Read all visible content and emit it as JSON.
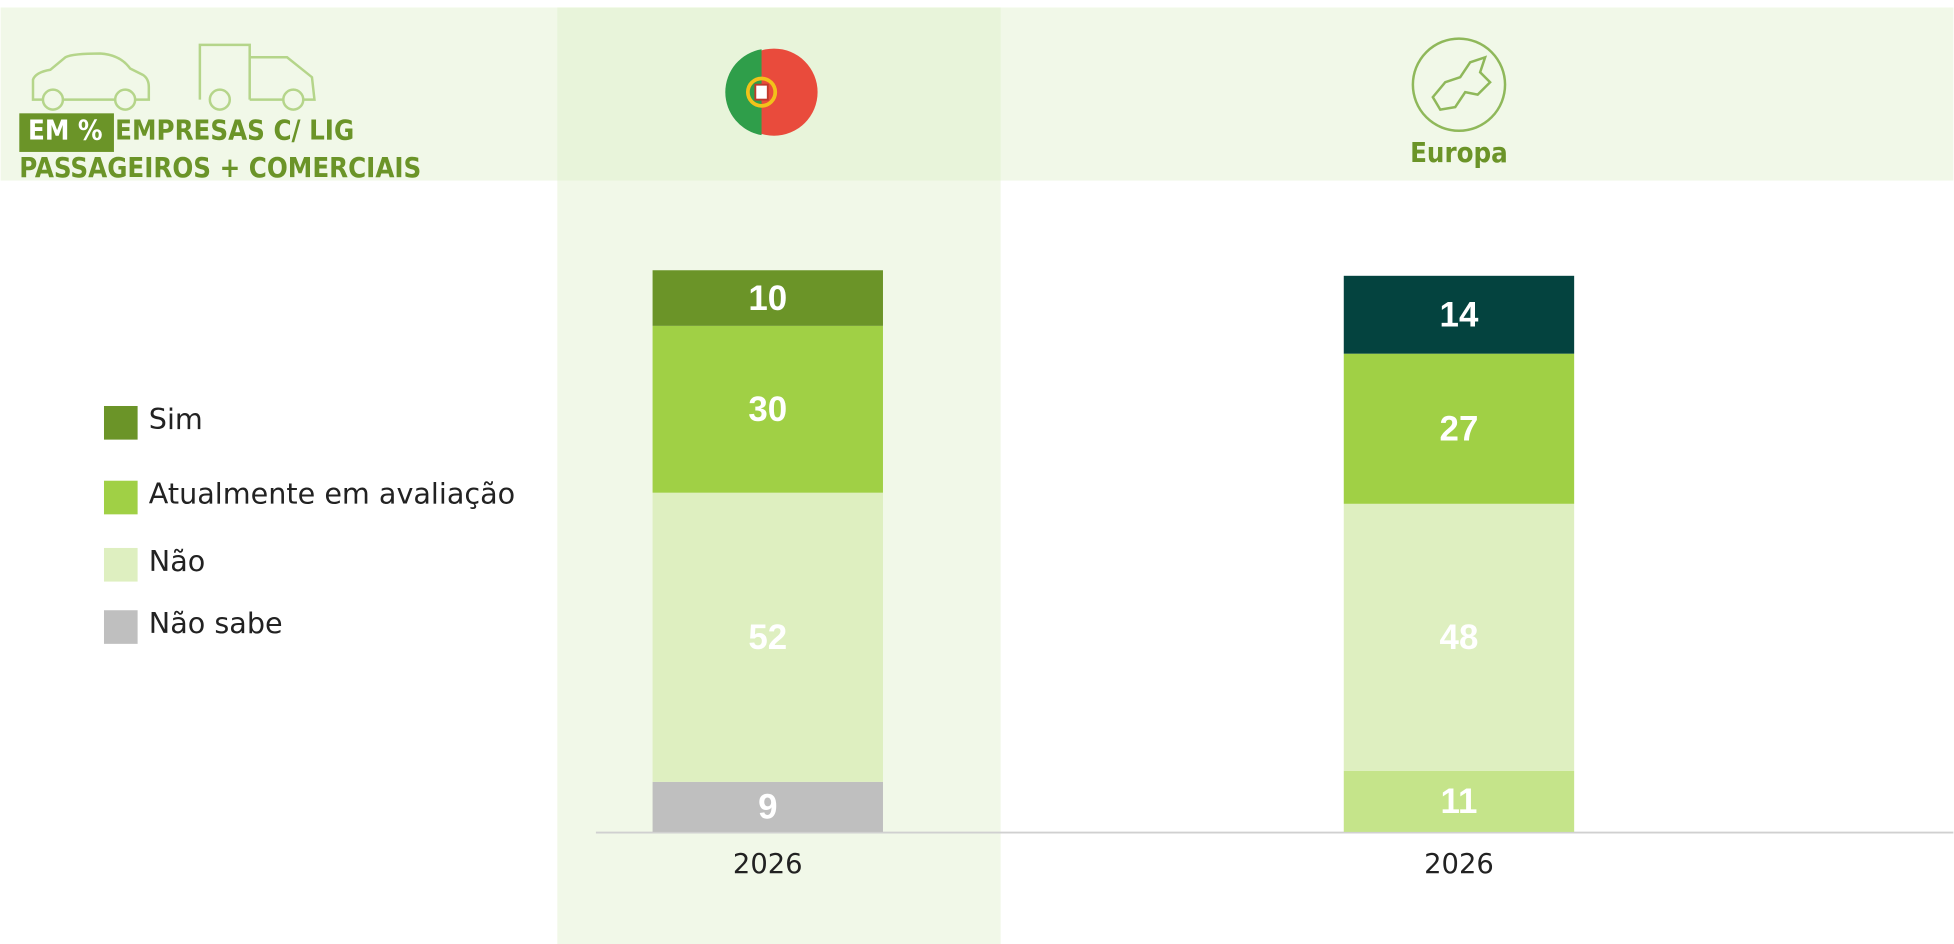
{
  "chart_data": {
    "type": "stacked-bar",
    "title": "EM %",
    "subtitle": [
      "EMPRESAS C/ LIG",
      "PASSAGEIROS + COMERCIAIS"
    ],
    "column_headers": [
      null,
      "Europa"
    ],
    "categories": [
      "2026",
      "2026"
    ],
    "series": [
      {
        "name": "Não sabe",
        "color": "#bfbfbf",
        "colors": [
          "#bfbfbf",
          "#c5e48a"
        ],
        "values": [
          9,
          11
        ]
      },
      {
        "name": "Não",
        "color": "#deefc0",
        "colors": [
          "#deefc0",
          "#deefc0"
        ],
        "values": [
          52,
          48
        ]
      },
      {
        "name": "Atualmente em avaliação",
        "color": "#a0d045",
        "colors": [
          "#a0d045",
          "#a0d045"
        ],
        "values": [
          30,
          27
        ]
      },
      {
        "name": "Sim",
        "color": "#6b9428",
        "colors": [
          "#6b9428",
          "#04433f"
        ],
        "values": [
          10,
          14
        ]
      }
    ]
  }
}
